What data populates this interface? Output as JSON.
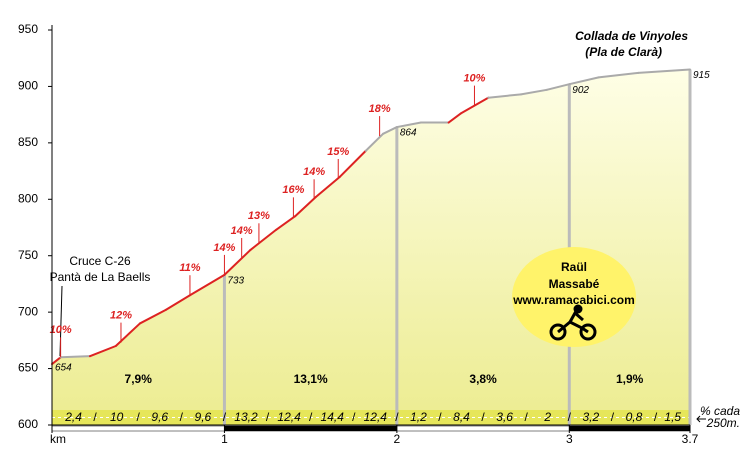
{
  "chart_data": {
    "type": "profile",
    "title": "Collada de Vinyoles",
    "subtitle": "(Pla de Clarà)",
    "start_label": [
      "Cruce C-26",
      "Pantà de La Baells"
    ],
    "x": [
      0,
      0.05,
      0.22,
      0.37,
      0.51,
      0.66,
      0.8,
      1,
      1.15,
      1.3,
      1.41,
      1.53,
      1.67,
      1.82,
      1.92,
      2,
      2.14,
      2.3,
      2.37,
      2.53,
      2.72,
      2.87,
      3,
      3.17,
      3.4,
      3.7
    ],
    "series": [
      {
        "values": [
          654,
          660,
          661,
          670,
          690,
          702,
          715,
          733,
          755,
          773,
          785,
          802,
          820,
          843,
          858,
          864,
          868,
          868,
          876,
          890,
          893,
          897,
          902,
          908,
          912,
          915
        ],
        "segment_colors": [
          "#dd2222",
          "#aaaaaa",
          "#dd2222",
          "#dd2222",
          "#dd2222",
          "#dd2222",
          "#dd2222",
          "#dd2222",
          "#dd2222",
          "#dd2222",
          "#dd2222",
          "#dd2222",
          "#dd2222",
          "#aaaaaa",
          "#aaaaaa",
          "#aaaaaa",
          "#aaaaaa",
          "#dd2222",
          "#dd2222",
          "#aaaaaa",
          "#aaaaaa",
          "#aaaaaa",
          "#aaaaaa",
          "#aaaaaa",
          "#aaaaaa"
        ]
      }
    ],
    "point_labels": [
      {
        "x": 0,
        "value": 654
      },
      {
        "x": 1,
        "value": 733
      },
      {
        "x": 2,
        "value": 864
      },
      {
        "x": 3,
        "value": 902
      },
      {
        "x": 3.7,
        "value": 915
      }
    ],
    "grade_labels": [
      {
        "x": 0.05,
        "y": 660,
        "value": 10,
        "label": "10%"
      },
      {
        "x": 0.4,
        "y": 673,
        "value": 12,
        "label": "12%"
      },
      {
        "x": 0.8,
        "y": 715,
        "value": 11,
        "label": "11%"
      },
      {
        "x": 1.0,
        "y": 733,
        "value": 14,
        "label": "14%"
      },
      {
        "x": 1.1,
        "y": 748,
        "value": 14,
        "label": "14%"
      },
      {
        "x": 1.2,
        "y": 761,
        "value": 13,
        "label": "13%"
      },
      {
        "x": 1.4,
        "y": 784,
        "value": 16,
        "label": "16%"
      },
      {
        "x": 1.52,
        "y": 800,
        "value": 14,
        "label": "14%"
      },
      {
        "x": 1.66,
        "y": 818,
        "value": 15,
        "label": "15%"
      },
      {
        "x": 1.9,
        "y": 856,
        "value": 18,
        "label": "18%"
      },
      {
        "x": 2.45,
        "y": 883,
        "value": 10,
        "label": "10%"
      }
    ],
    "section_grades": [
      {
        "value": 7.9,
        "label": "7,9%"
      },
      {
        "value": 13.1,
        "label": "13,1%"
      },
      {
        "value": 3.8,
        "label": "3,8%"
      },
      {
        "value": 1.9,
        "label": "1,9%"
      }
    ],
    "quarter_grades": [
      {
        "value": 2.4,
        "label": "2,4"
      },
      10,
      {
        "value": 9.6,
        "label": "9,6"
      },
      {
        "value": 9.6,
        "label": "9,6"
      },
      {
        "value": 13.2,
        "label": "13,2"
      },
      {
        "value": 12.4,
        "label": "12,4"
      },
      {
        "value": 14.4,
        "label": "14,4"
      },
      {
        "value": 12.4,
        "label": "12,4"
      },
      {
        "value": 1.2,
        "label": "1,2"
      },
      {
        "value": 8.4,
        "label": "8,4"
      },
      {
        "value": 3.6,
        "label": "3,6"
      },
      2,
      {
        "value": 3.2,
        "label": "3,2"
      },
      {
        "value": 0.8,
        "label": "0,8"
      },
      {
        "value": 1.5,
        "label": "1,5"
      }
    ],
    "quarter_note": [
      "% cada",
      "250m."
    ],
    "logo": [
      "Raül",
      "Massabé",
      "www.ramacabici.com"
    ],
    "xlim": [
      0,
      3.7
    ],
    "xticks": [
      {
        "value": 0,
        "label": "km"
      },
      1,
      2,
      3,
      3.7
    ],
    "ylim": [
      600,
      950
    ],
    "yticks": [
      600,
      650,
      700,
      750,
      800,
      850,
      900,
      950
    ]
  }
}
